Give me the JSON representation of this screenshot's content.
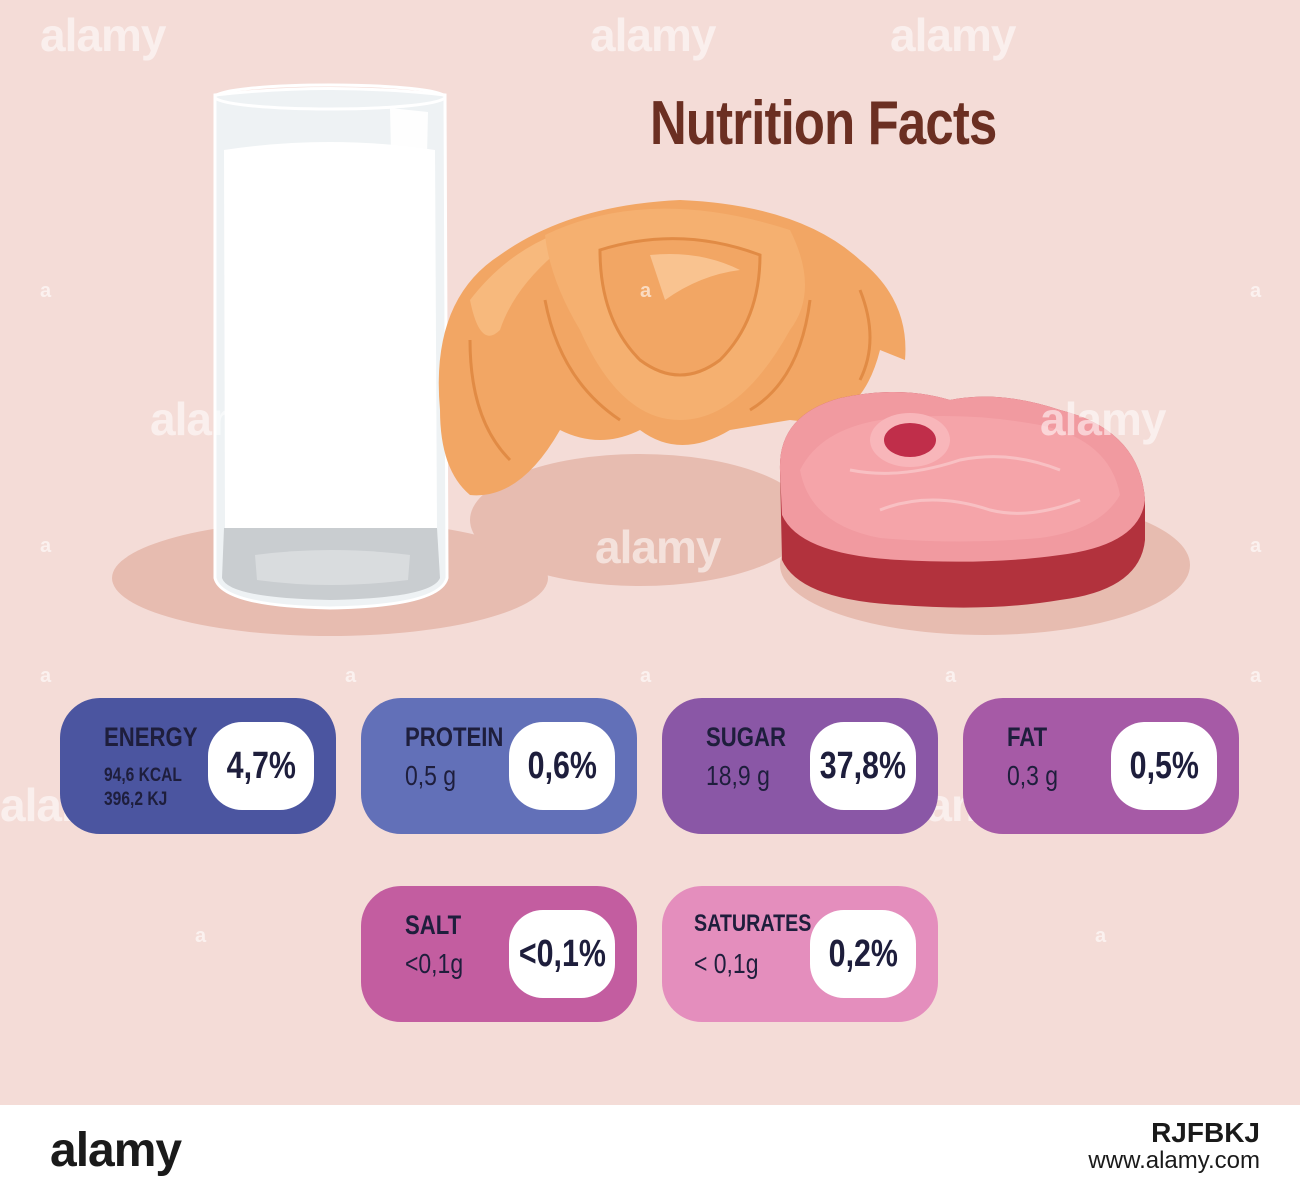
{
  "header": {
    "title": "Nutrition Facts"
  },
  "nutrients": [
    {
      "name": "ENERGY",
      "amount_lines": [
        "94,6 KCAL",
        "396,2 KJ"
      ],
      "percent": "4,7%",
      "color": "#4b55a0"
    },
    {
      "name": "PROTEIN",
      "amount": "0,5 g",
      "percent": "0,6%",
      "color": "#6270b8"
    },
    {
      "name": "SUGAR",
      "amount": "18,9 g",
      "percent": "37,8%",
      "color": "#8a57a6"
    },
    {
      "name": "FAT",
      "amount": "0,3 g",
      "percent": "0,5%",
      "color": "#a65aa6"
    },
    {
      "name": "SALT",
      "amount": "<0,1g",
      "percent": "<0,1%",
      "color": "#c35da0"
    },
    {
      "name": "SATURATES",
      "amount": "< 0,1g",
      "percent": "0,2%",
      "color": "#e48ebd"
    }
  ],
  "watermark": {
    "text": "alamy",
    "mark": "a"
  },
  "footer": {
    "logo": "alamy",
    "image_id": "RJFBKJ",
    "site": "www.alamy.com"
  },
  "illustration": {
    "items": [
      "milk-glass",
      "croissant",
      "steak"
    ]
  }
}
